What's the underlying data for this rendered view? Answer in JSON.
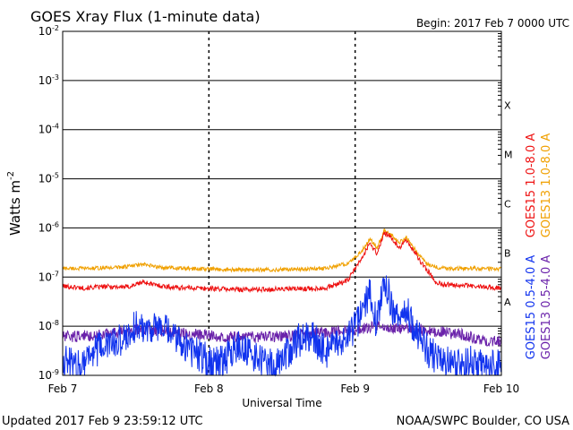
{
  "header": {
    "title": "GOES Xray Flux (1-minute data)",
    "begin": "Begin:  2017 Feb 7 0000 UTC"
  },
  "footer": {
    "updated": "Updated 2017 Feb  9 23:59:12 UTC",
    "credit": "NOAA/SWPC Boulder, CO USA"
  },
  "colors": {
    "goes15_long": "#ee1111",
    "goes13_long": "#f0a000",
    "goes15_short": "#1133ee",
    "goes13_short": "#6a22aa",
    "axis": "#000000"
  },
  "chart_data": {
    "type": "line",
    "title": "GOES Xray Flux (1-minute data)",
    "xlabel": "Universal Time",
    "ylabel_base": "Watts m",
    "ylabel_exp": "-2",
    "yscale": "log",
    "ylim": [
      1e-09,
      0.01
    ],
    "xlim_days": [
      0,
      3
    ],
    "grid": true,
    "x_ticks": [
      "Feb 7",
      "Feb 8",
      "Feb 9",
      "Feb 10"
    ],
    "y_ticks": [
      {
        "base": "10",
        "exp": "-9"
      },
      {
        "base": "10",
        "exp": "-8"
      },
      {
        "base": "10",
        "exp": "-7"
      },
      {
        "base": "10",
        "exp": "-6"
      },
      {
        "base": "10",
        "exp": "-5"
      },
      {
        "base": "10",
        "exp": "-4"
      },
      {
        "base": "10",
        "exp": "-3"
      },
      {
        "base": "10",
        "exp": "-2"
      }
    ],
    "flare_classes": [
      "A",
      "B",
      "C",
      "M",
      "X"
    ],
    "legend_placement": "right",
    "series": [
      {
        "name": "GOES15 1.0-8.0 A",
        "color": "#ee1111",
        "points": [
          [
            0.0,
            6.5e-08
          ],
          [
            0.15,
            6e-08
          ],
          [
            0.3,
            6.4e-08
          ],
          [
            0.45,
            6.3e-08
          ],
          [
            0.55,
            8e-08
          ],
          [
            0.62,
            7e-08
          ],
          [
            0.75,
            6.2e-08
          ],
          [
            0.9,
            6e-08
          ],
          [
            1.05,
            5.8e-08
          ],
          [
            1.2,
            5.6e-08
          ],
          [
            1.35,
            5.6e-08
          ],
          [
            1.5,
            5.7e-08
          ],
          [
            1.65,
            5.8e-08
          ],
          [
            1.8,
            6e-08
          ],
          [
            1.95,
            8.5e-08
          ],
          [
            2.0,
            1.5e-07
          ],
          [
            2.05,
            2.5e-07
          ],
          [
            2.1,
            5e-07
          ],
          [
            2.15,
            3e-07
          ],
          [
            2.2,
            8e-07
          ],
          [
            2.25,
            6e-07
          ],
          [
            2.3,
            4e-07
          ],
          [
            2.35,
            5.5e-07
          ],
          [
            2.4,
            3.5e-07
          ],
          [
            2.45,
            2e-07
          ],
          [
            2.5,
            1.3e-07
          ],
          [
            2.55,
            8e-08
          ],
          [
            2.6,
            7e-08
          ],
          [
            2.7,
            7e-08
          ],
          [
            2.8,
            6.5e-08
          ],
          [
            2.9,
            6.2e-08
          ],
          [
            3.0,
            6e-08
          ]
        ]
      },
      {
        "name": "GOES13 1.0-8.0 A",
        "color": "#f0a000",
        "points": [
          [
            0.0,
            1.5e-07
          ],
          [
            0.2,
            1.5e-07
          ],
          [
            0.4,
            1.6e-07
          ],
          [
            0.55,
            1.8e-07
          ],
          [
            0.65,
            1.6e-07
          ],
          [
            0.8,
            1.5e-07
          ],
          [
            1.0,
            1.45e-07
          ],
          [
            1.2,
            1.4e-07
          ],
          [
            1.4,
            1.4e-07
          ],
          [
            1.6,
            1.45e-07
          ],
          [
            1.8,
            1.5e-07
          ],
          [
            1.95,
            1.9e-07
          ],
          [
            2.0,
            2.5e-07
          ],
          [
            2.05,
            3.5e-07
          ],
          [
            2.1,
            6e-07
          ],
          [
            2.15,
            4e-07
          ],
          [
            2.2,
            9e-07
          ],
          [
            2.25,
            7e-07
          ],
          [
            2.3,
            5e-07
          ],
          [
            2.35,
            6.5e-07
          ],
          [
            2.4,
            4e-07
          ],
          [
            2.45,
            2.5e-07
          ],
          [
            2.5,
            1.8e-07
          ],
          [
            2.55,
            1.6e-07
          ],
          [
            2.65,
            1.5e-07
          ],
          [
            2.8,
            1.5e-07
          ],
          [
            3.0,
            1.45e-07
          ]
        ]
      },
      {
        "name": "GOES15 0.5-4.0 A",
        "color": "#1133ee",
        "points": [
          [
            0.0,
            2e-09
          ],
          [
            0.1,
            1.5e-09
          ],
          [
            0.2,
            3e-09
          ],
          [
            0.3,
            4e-09
          ],
          [
            0.4,
            5e-09
          ],
          [
            0.5,
            1e-08
          ],
          [
            0.6,
            1e-08
          ],
          [
            0.7,
            8e-09
          ],
          [
            0.8,
            5e-09
          ],
          [
            0.9,
            3e-09
          ],
          [
            1.0,
            2e-09
          ],
          [
            1.1,
            2e-09
          ],
          [
            1.2,
            4e-09
          ],
          [
            1.3,
            2.5e-09
          ],
          [
            1.4,
            1.5e-09
          ],
          [
            1.5,
            2e-09
          ],
          [
            1.6,
            5e-09
          ],
          [
            1.7,
            6e-09
          ],
          [
            1.8,
            3e-09
          ],
          [
            1.9,
            4e-09
          ],
          [
            2.0,
            1e-08
          ],
          [
            2.1,
            5e-08
          ],
          [
            2.15,
            1e-08
          ],
          [
            2.2,
            1e-07
          ],
          [
            2.25,
            2.5e-08
          ],
          [
            2.3,
            1.2e-08
          ],
          [
            2.35,
            2e-08
          ],
          [
            2.4,
            1e-08
          ],
          [
            2.5,
            3e-09
          ],
          [
            2.6,
            2e-09
          ],
          [
            2.7,
            1.5e-09
          ],
          [
            2.8,
            2e-09
          ],
          [
            2.9,
            1.5e-09
          ],
          [
            3.0,
            1.5e-09
          ]
        ]
      },
      {
        "name": "GOES13 0.5-4.0 A",
        "color": "#6a22aa",
        "points": [
          [
            0.0,
            6e-09
          ],
          [
            0.2,
            6.5e-09
          ],
          [
            0.4,
            7.5e-09
          ],
          [
            0.55,
            9e-09
          ],
          [
            0.7,
            8e-09
          ],
          [
            0.85,
            7e-09
          ],
          [
            1.0,
            6.5e-09
          ],
          [
            1.2,
            6e-09
          ],
          [
            1.4,
            6e-09
          ],
          [
            1.6,
            6.5e-09
          ],
          [
            1.8,
            7.5e-09
          ],
          [
            1.95,
            8e-09
          ],
          [
            2.1,
            9.5e-09
          ],
          [
            2.2,
            1e-08
          ],
          [
            2.3,
            9e-09
          ],
          [
            2.4,
            9e-09
          ],
          [
            2.5,
            8e-09
          ],
          [
            2.6,
            7.5e-09
          ],
          [
            2.7,
            7e-09
          ],
          [
            2.8,
            6e-09
          ],
          [
            2.9,
            5e-09
          ],
          [
            3.0,
            5e-09
          ]
        ]
      }
    ]
  }
}
